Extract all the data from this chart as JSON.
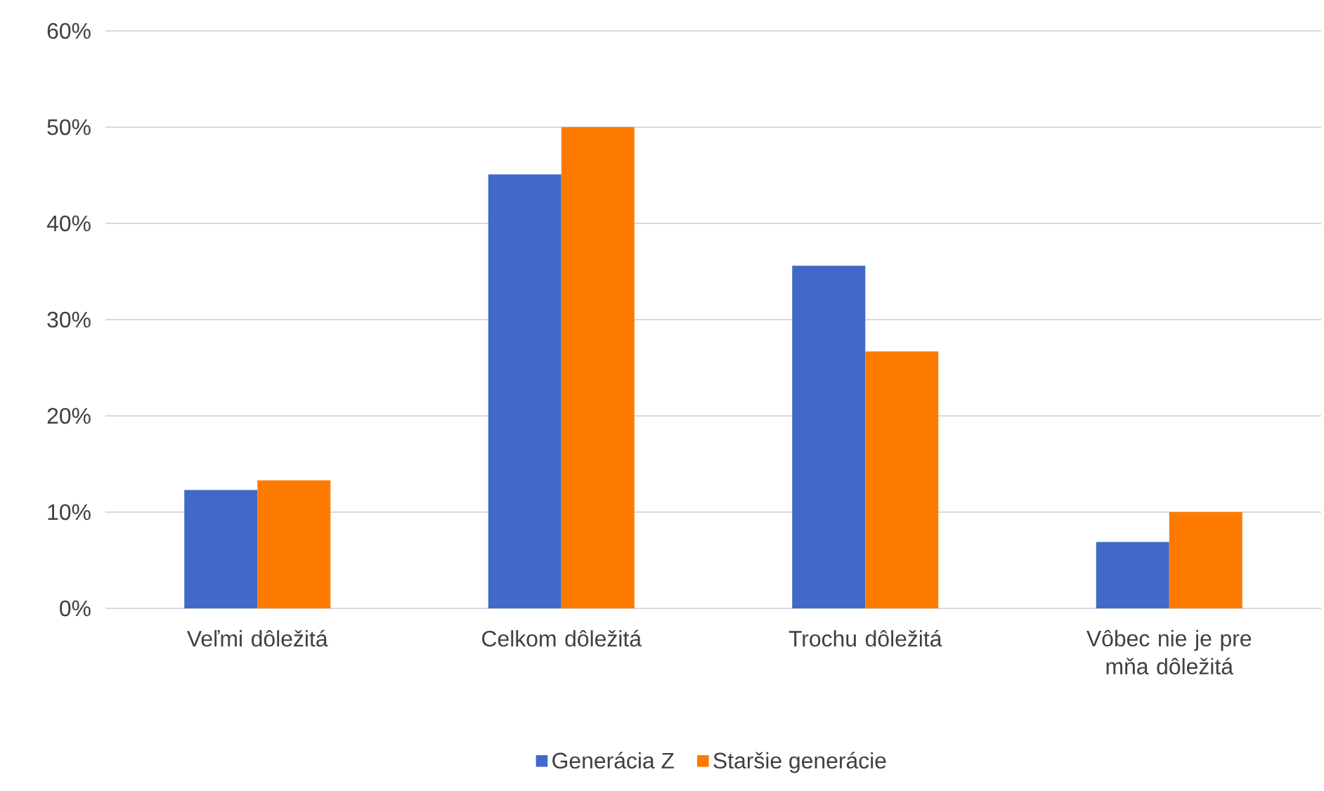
{
  "chart_data": {
    "type": "bar",
    "categories": [
      "Veľmi dôležitá",
      "Celkom dôležitá",
      "Trochu dôležitá",
      "Vôbec nie je pre mňa dôležitá"
    ],
    "series": [
      {
        "name": "Generácia Z",
        "color": "#4169c8",
        "values": [
          12.3,
          45.1,
          35.6,
          6.9
        ]
      },
      {
        "name": "Staršie generácie",
        "color": "#fe7b00",
        "values": [
          13.3,
          50,
          26.7,
          10
        ]
      }
    ],
    "ylim": [
      0,
      60
    ],
    "yticks": [
      {
        "value": 0,
        "label": "0%"
      },
      {
        "value": 10,
        "label": "10%"
      },
      {
        "value": 20,
        "label": "20%"
      },
      {
        "value": 30,
        "label": "30%"
      },
      {
        "value": 40,
        "label": "40%"
      },
      {
        "value": 50,
        "label": "50%"
      },
      {
        "value": 60,
        "label": "60%"
      }
    ],
    "grid": "y",
    "legend": "bottom"
  }
}
